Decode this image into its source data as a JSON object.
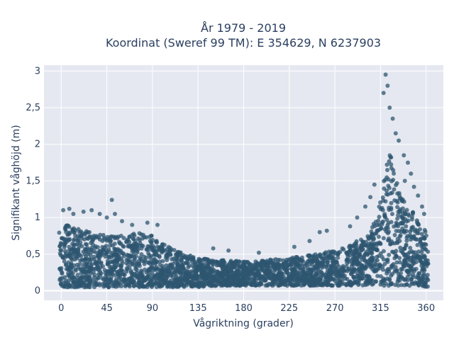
{
  "chart_data": {
    "type": "scatter",
    "title_line1": "År 1979 - 2019",
    "title_line2": "Koordinat (Sweref 99 TM): E 354629, N 6237903",
    "xlabel": "Vågriktning (grader)",
    "ylabel": "Signifikant våghöjd (m)",
    "xlim": [
      -17,
      377
    ],
    "ylim": [
      -0.13,
      3.08
    ],
    "xticks": [
      0,
      45,
      90,
      135,
      180,
      225,
      270,
      315,
      360
    ],
    "xtick_labels": [
      "0",
      "45",
      "90",
      "135",
      "180",
      "225",
      "270",
      "315",
      "360"
    ],
    "yticks": [
      0,
      0.5,
      1,
      1.5,
      2,
      2.5,
      3
    ],
    "ytick_labels": [
      "0",
      "0,5",
      "1",
      "1,5",
      "2",
      "2,5",
      "3"
    ],
    "grid": true,
    "legend": "none",
    "marker_color": "#2e5670",
    "plot_background": "#e5e8f0",
    "density_envelope": {
      "direction": [
        0,
        5,
        15,
        30,
        45,
        60,
        75,
        90,
        100,
        115,
        135,
        160,
        180,
        200,
        225,
        250,
        270,
        285,
        300,
        310,
        315,
        320,
        325,
        330,
        335,
        340,
        345,
        350,
        355,
        360
      ],
      "upper_height": [
        0.85,
        0.9,
        0.85,
        0.8,
        0.75,
        0.75,
        0.8,
        0.75,
        0.65,
        0.55,
        0.45,
        0.42,
        0.4,
        0.42,
        0.45,
        0.5,
        0.55,
        0.62,
        0.75,
        0.95,
        1.25,
        1.7,
        2.05,
        1.6,
        1.35,
        1.15,
        1.1,
        1.05,
        0.95,
        0.85
      ],
      "lower_height": [
        0.05,
        0.05,
        0.05,
        0.05,
        0.05,
        0.05,
        0.05,
        0.05,
        0.05,
        0.05,
        0.05,
        0.07,
        0.07,
        0.07,
        0.07,
        0.07,
        0.07,
        0.07,
        0.07,
        0.07,
        0.07,
        0.07,
        0.07,
        0.07,
        0.07,
        0.07,
        0.07,
        0.07,
        0.07,
        0.05
      ]
    },
    "outliers": [
      {
        "x": 2,
        "y": 1.1
      },
      {
        "x": 8,
        "y": 1.12
      },
      {
        "x": 12,
        "y": 1.05
      },
      {
        "x": 22,
        "y": 1.08
      },
      {
        "x": 30,
        "y": 1.1
      },
      {
        "x": 38,
        "y": 1.05
      },
      {
        "x": 45,
        "y": 1.0
      },
      {
        "x": 50,
        "y": 1.24
      },
      {
        "x": 53,
        "y": 1.05
      },
      {
        "x": 60,
        "y": 0.95
      },
      {
        "x": 70,
        "y": 0.9
      },
      {
        "x": 85,
        "y": 0.93
      },
      {
        "x": 95,
        "y": 0.9
      },
      {
        "x": 150,
        "y": 0.58
      },
      {
        "x": 165,
        "y": 0.55
      },
      {
        "x": 195,
        "y": 0.52
      },
      {
        "x": 230,
        "y": 0.6
      },
      {
        "x": 245,
        "y": 0.68
      },
      {
        "x": 255,
        "y": 0.8
      },
      {
        "x": 262,
        "y": 0.82
      },
      {
        "x": 285,
        "y": 0.88
      },
      {
        "x": 292,
        "y": 1.0
      },
      {
        "x": 300,
        "y": 1.15
      },
      {
        "x": 305,
        "y": 1.28
      },
      {
        "x": 309,
        "y": 1.45
      },
      {
        "x": 318,
        "y": 2.7
      },
      {
        "x": 320,
        "y": 2.95
      },
      {
        "x": 322,
        "y": 2.8
      },
      {
        "x": 324,
        "y": 2.5
      },
      {
        "x": 327,
        "y": 2.35
      },
      {
        "x": 330,
        "y": 2.15
      },
      {
        "x": 333,
        "y": 2.05
      },
      {
        "x": 338,
        "y": 1.85
      },
      {
        "x": 342,
        "y": 1.75
      },
      {
        "x": 345,
        "y": 1.6
      },
      {
        "x": 348,
        "y": 1.42
      },
      {
        "x": 352,
        "y": 1.3
      },
      {
        "x": 356,
        "y": 1.15
      },
      {
        "x": 358,
        "y": 1.05
      },
      {
        "x": 339,
        "y": 1.5
      }
    ],
    "point_count": 3000
  }
}
